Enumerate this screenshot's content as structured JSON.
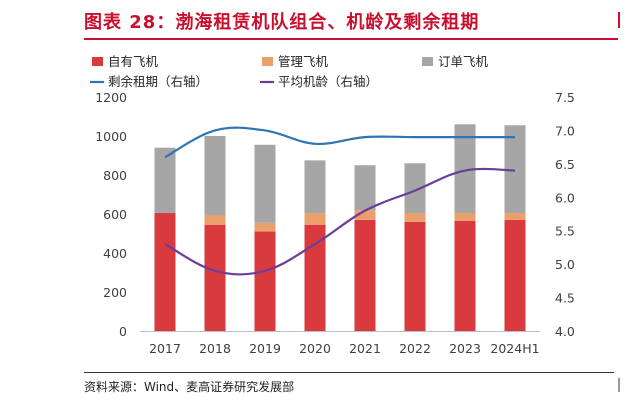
{
  "figure": {
    "title": "图表 28：渤海租赁机队组合、机龄及剩余租期",
    "source": "资料来源：Wind、麦高证券研究发展部"
  },
  "colors": {
    "owned": "#d93a3e",
    "managed": "#e9a06c",
    "ordered": "#a6a6a6",
    "remaining_lease": "#2e75b6",
    "fleet_age": "#6a3d9a",
    "accent": "#c8102e"
  },
  "chart_data": {
    "type": "bar",
    "stacked": true,
    "categories": [
      "2017",
      "2018",
      "2019",
      "2020",
      "2021",
      "2022",
      "2023",
      "2024H1"
    ],
    "series": [
      {
        "name": "自有飞机",
        "type": "bar",
        "axis": "left",
        "values": [
          605,
          545,
          510,
          545,
          570,
          560,
          565,
          570
        ]
      },
      {
        "name": "管理飞机",
        "type": "bar",
        "axis": "left",
        "values": [
          0,
          50,
          45,
          60,
          50,
          45,
          40,
          35
        ]
      },
      {
        "name": "订单飞机",
        "type": "bar",
        "axis": "left",
        "values": [
          335,
          405,
          400,
          270,
          230,
          255,
          455,
          450
        ]
      },
      {
        "name": "剩余租期（右轴）",
        "type": "line",
        "axis": "right",
        "values": [
          6.6,
          7.0,
          7.0,
          6.8,
          6.9,
          6.9,
          6.9,
          6.9
        ]
      },
      {
        "name": "平均机龄（右轴）",
        "type": "line",
        "axis": "right",
        "values": [
          5.3,
          4.9,
          4.9,
          5.3,
          5.8,
          6.1,
          6.4,
          6.4
        ]
      }
    ],
    "y_left": {
      "min": 0,
      "max": 1200,
      "ticks": [
        "0",
        "200",
        "400",
        "600",
        "800",
        "1000",
        "1200"
      ]
    },
    "y_right": {
      "min": 4.0,
      "max": 7.5,
      "ticks": [
        "4.0",
        "4.5",
        "5.0",
        "5.5",
        "6.0",
        "6.5",
        "7.0",
        "7.5"
      ]
    },
    "legend": {
      "position": "top-left",
      "columns": 3
    }
  }
}
